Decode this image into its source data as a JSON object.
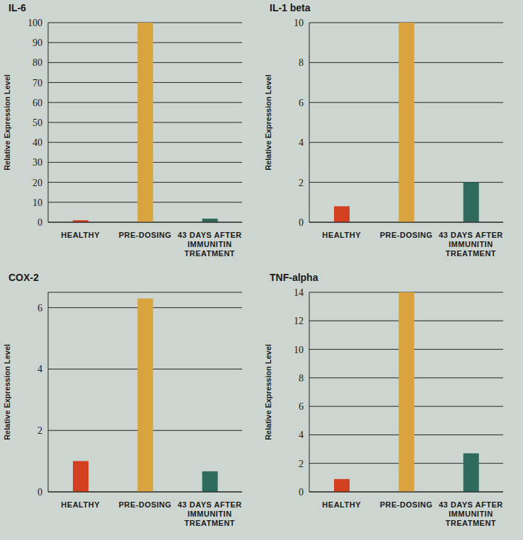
{
  "chart_data": [
    {
      "type": "bar",
      "title": "IL-6",
      "y_label": "Relative Expression Level",
      "categories": [
        "HEALTHY",
        "PRE-DOSING",
        "43 DAYS AFTER IMMUNITIN TREATMENT"
      ],
      "values": [
        1,
        100,
        1.8
      ],
      "colors": [
        "#d2401f",
        "#d9a43f",
        "#2e6b5c"
      ],
      "ylim": [
        0,
        100
      ],
      "yticks": [
        0,
        10,
        20,
        30,
        40,
        50,
        60,
        70,
        80,
        90,
        100
      ],
      "grid": true
    },
    {
      "type": "bar",
      "title": "IL-1 beta",
      "y_label": "Relative Expression Level",
      "categories": [
        "HEALTHY",
        "PRE-DOSING",
        "43 DAYS AFTER IMMUNITIN TREATMENT"
      ],
      "values": [
        0.8,
        10,
        2
      ],
      "colors": [
        "#d2401f",
        "#d9a43f",
        "#2e6b5c"
      ],
      "ylim": [
        0,
        10
      ],
      "yticks": [
        0,
        2,
        4,
        6,
        8,
        10
      ],
      "grid": true
    },
    {
      "type": "bar",
      "title": "COX-2",
      "y_label": "Relative Expression Level",
      "categories": [
        "HEALTHY",
        "PRE-DOSING",
        "43 DAYS AFTER IMMUNITIN TREATMENT"
      ],
      "values": [
        1,
        6.3,
        0.67
      ],
      "colors": [
        "#d2401f",
        "#d9a43f",
        "#2e6b5c"
      ],
      "ylim": [
        0,
        6.5
      ],
      "yticks": [
        0,
        2,
        4,
        6
      ],
      "grid": true
    },
    {
      "type": "bar",
      "title": "TNF-alpha",
      "y_label": "Relative Expression Level",
      "categories": [
        "HEALTHY",
        "PRE-DOSING",
        "43 DAYS AFTER IMMUNITIN TREATMENT"
      ],
      "values": [
        0.9,
        14,
        2.7
      ],
      "colors": [
        "#d2401f",
        "#d9a43f",
        "#2e6b5c"
      ],
      "ylim": [
        0,
        14
      ],
      "yticks": [
        0,
        2,
        4,
        6,
        8,
        10,
        12,
        14
      ],
      "grid": true
    }
  ]
}
